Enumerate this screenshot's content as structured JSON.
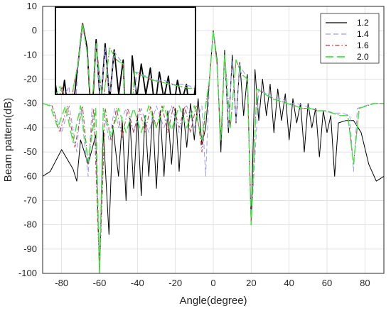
{
  "chart_data": {
    "type": "line",
    "title": "",
    "xlabel": "Angle(degree)",
    "ylabel": "Beam pattern(dB)",
    "xlim": [
      -90,
      90
    ],
    "ylim": [
      -100,
      10
    ],
    "xticks": [
      "-80",
      "-60",
      "-40",
      "-20",
      "0",
      "20",
      "40",
      "60",
      "80"
    ],
    "yticks": [
      "10",
      "0",
      "-10",
      "-20",
      "-30",
      "-40",
      "-50",
      "-60",
      "-70",
      "-80",
      "-90",
      "-100"
    ],
    "grid": true,
    "legend_position": "top-right",
    "colors": {
      "s1": "#000000",
      "s2": "#9a9aff",
      "s3": "#cc3333",
      "s4": "#33ee33"
    },
    "series": [
      {
        "name": "1.2",
        "style": "solid",
        "color": "#000000",
        "x": [
          -90,
          -86,
          -80,
          -74,
          -72,
          -70,
          -66,
          -62,
          -60,
          -58,
          -55,
          -53,
          -50,
          -48,
          -46,
          -44,
          -42,
          -40,
          -38,
          -36,
          -34,
          -32,
          -30,
          -28,
          -26,
          -24,
          -22,
          -20,
          -18,
          -16,
          -14,
          -12,
          -10,
          -8,
          -6,
          -4,
          -2,
          0,
          2,
          4,
          6,
          8,
          10,
          12,
          14,
          16,
          18,
          20,
          22,
          24,
          26,
          28,
          30,
          32,
          34,
          36,
          38,
          40,
          42,
          44,
          46,
          48,
          50,
          52,
          54,
          56,
          58,
          60,
          62,
          64,
          66,
          70,
          74,
          78,
          82,
          86,
          88,
          90
        ],
        "y": [
          -60,
          -58,
          -49,
          -57,
          -62,
          -45,
          -55,
          -43,
          -100,
          -41,
          -84,
          -39,
          -60,
          -37,
          -70,
          -36,
          -65,
          -35,
          -68,
          -35,
          -60,
          -34,
          -65,
          -33,
          -60,
          -33,
          -55,
          -32,
          -58,
          -32,
          -48,
          -30,
          -45,
          -28,
          -47,
          -40,
          -20,
          0,
          -12,
          -50,
          -8,
          -42,
          -10,
          -38,
          -13,
          -35,
          -18,
          -80,
          -16,
          -37,
          -20,
          -35,
          -22,
          -42,
          -24,
          -37,
          -26,
          -45,
          -28,
          -38,
          -30,
          -50,
          -30,
          -40,
          -32,
          -52,
          -33,
          -42,
          -35,
          -60,
          -38,
          -37,
          -37,
          -42,
          -55,
          -62,
          -61,
          -60
        ]
      },
      {
        "name": "1.4",
        "style": "dashed",
        "color": "#9a9aff",
        "x": [
          -90,
          -85,
          -80,
          -76,
          -72,
          -70,
          -66,
          -64,
          -62,
          -60,
          -58,
          -55,
          -52,
          -50,
          -46,
          -42,
          -38,
          -34,
          -30,
          -26,
          -22,
          -18,
          -14,
          -10,
          -6,
          -4,
          -2,
          0,
          2,
          4,
          6,
          8,
          10,
          12,
          14,
          18,
          20,
          24,
          28,
          32,
          36,
          40,
          44,
          48,
          52,
          56,
          60,
          64,
          68,
          72,
          74,
          76,
          80,
          84,
          88,
          90
        ],
        "y": [
          -30,
          -31,
          -42,
          -31,
          -50,
          -31,
          -60,
          -32,
          -45,
          -100,
          -32,
          -45,
          -32,
          -40,
          -32,
          -42,
          -32,
          -42,
          -31,
          -40,
          -31,
          -42,
          -31,
          -40,
          -31,
          -60,
          -20,
          0,
          -14,
          -45,
          -10,
          -40,
          -12,
          -38,
          -14,
          -20,
          -80,
          -24,
          -26,
          -28,
          -28,
          -30,
          -30,
          -31,
          -32,
          -33,
          -33,
          -34,
          -34,
          -35,
          -58,
          -32,
          -31,
          -30,
          -30,
          -30
        ]
      },
      {
        "name": "1.6",
        "style": "dashdot",
        "color": "#cc3333",
        "x": [
          -90,
          -85,
          -81,
          -77,
          -73,
          -69,
          -66,
          -63,
          -60,
          -57,
          -54,
          -51,
          -48,
          -45,
          -42,
          -39,
          -36,
          -33,
          -30,
          -27,
          -24,
          -21,
          -18,
          -15,
          -12,
          -9,
          -6,
          -4,
          -2,
          0,
          2,
          4,
          6,
          9,
          12,
          15,
          18,
          20,
          23,
          27,
          31,
          35,
          39,
          43,
          47,
          51,
          55,
          59,
          63,
          67,
          71,
          74,
          77,
          81,
          85,
          88,
          90
        ],
        "y": [
          -30,
          -31,
          -42,
          -31,
          -48,
          -31,
          -55,
          -32,
          -100,
          -32,
          -45,
          -32,
          -44,
          -32,
          -42,
          -32,
          -42,
          -31,
          -40,
          -31,
          -42,
          -31,
          -40,
          -31,
          -42,
          -31,
          -50,
          -31,
          -20,
          0,
          -14,
          -45,
          -10,
          -40,
          -12,
          -18,
          -20,
          -80,
          -24,
          -26,
          -28,
          -29,
          -30,
          -31,
          -32,
          -32,
          -33,
          -33,
          -34,
          -35,
          -35,
          -55,
          -32,
          -31,
          -30,
          -30,
          -30
        ]
      },
      {
        "name": "2.0",
        "style": "longdash",
        "color": "#33ee33",
        "x": [
          -90,
          -86,
          -82,
          -78,
          -74,
          -70,
          -66,
          -62,
          -60,
          -58,
          -54,
          -50,
          -46,
          -42,
          -38,
          -34,
          -30,
          -26,
          -22,
          -18,
          -14,
          -10,
          -6,
          -4,
          -2,
          0,
          2,
          4,
          6,
          9,
          12,
          15,
          18,
          20,
          23,
          27,
          31,
          35,
          39,
          43,
          47,
          51,
          55,
          59,
          63,
          67,
          71,
          74,
          77,
          81,
          85,
          88,
          90
        ],
        "y": [
          -30,
          -31,
          -40,
          -31,
          -46,
          -31,
          -54,
          -32,
          -100,
          -32,
          -44,
          -32,
          -42,
          -32,
          -42,
          -31,
          -40,
          -31,
          -41,
          -31,
          -40,
          -31,
          -45,
          -31,
          -20,
          0,
          -14,
          -45,
          -10,
          -40,
          -12,
          -18,
          -20,
          -80,
          -24,
          -26,
          -28,
          -29,
          -30,
          -31,
          -32,
          -32,
          -33,
          -33,
          -34,
          -35,
          -35,
          -55,
          -32,
          -31,
          -30,
          -30,
          -30
        ]
      }
    ]
  }
}
